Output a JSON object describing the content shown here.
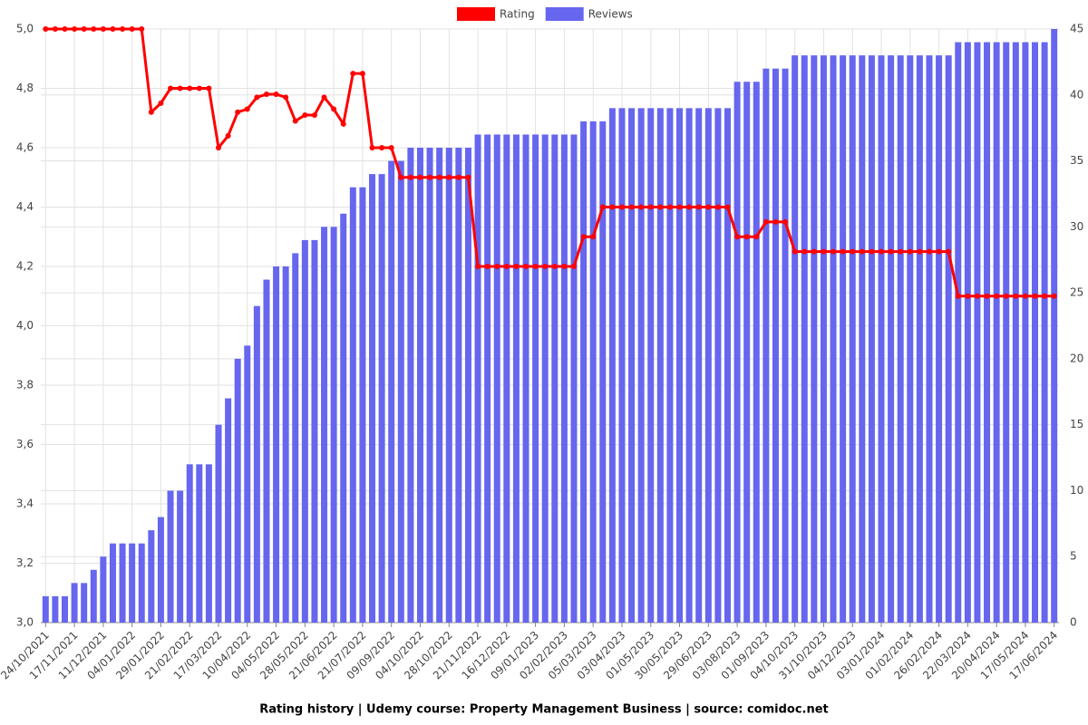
{
  "chart_data": {
    "type": "combo",
    "title": "Rating history | Udemy course: Property Management Business | source: comidoc.net",
    "categories": [
      "24/10/2021",
      null,
      null,
      "17/11/2021",
      null,
      null,
      "11/12/2021",
      null,
      null,
      "04/01/2022",
      null,
      null,
      "29/01/2022",
      null,
      null,
      "21/02/2022",
      null,
      null,
      "17/03/2022",
      null,
      null,
      "10/04/2022",
      null,
      null,
      "04/05/2022",
      null,
      null,
      "28/05/2022",
      null,
      null,
      "21/06/2022",
      null,
      null,
      "21/07/2022",
      null,
      null,
      "09/09/2022",
      null,
      null,
      "04/10/2022",
      null,
      null,
      "28/10/2022",
      null,
      null,
      "21/11/2022",
      null,
      null,
      "16/12/2022",
      null,
      null,
      "09/01/2023",
      null,
      null,
      "02/02/2023",
      null,
      null,
      "05/03/2023",
      null,
      null,
      "03/04/2023",
      null,
      null,
      "01/05/2023",
      null,
      null,
      "30/05/2023",
      null,
      null,
      "29/06/2023",
      null,
      null,
      "03/08/2023",
      null,
      null,
      "01/09/2023",
      null,
      null,
      "04/10/2023",
      null,
      null,
      "31/10/2023",
      null,
      null,
      "04/12/2023",
      null,
      null,
      "03/01/2024",
      null,
      null,
      "01/02/2024",
      null,
      null,
      "26/02/2024",
      null,
      null,
      "22/03/2024",
      null,
      null,
      "20/04/2024",
      null,
      null,
      "17/05/2024",
      null,
      null,
      "17/06/2024"
    ],
    "series": [
      {
        "name": "Rating",
        "type": "line",
        "axis": "y",
        "color": "#ff0000",
        "values": [
          5,
          5,
          5,
          5,
          5,
          5,
          5,
          5,
          5,
          5,
          5,
          4.72,
          4.75,
          4.8,
          4.8,
          4.8,
          4.8,
          4.8,
          4.6,
          4.64,
          4.72,
          4.73,
          4.77,
          4.78,
          4.78,
          4.77,
          4.69,
          4.71,
          4.71,
          4.77,
          4.73,
          4.68,
          4.85,
          4.85,
          4.6,
          4.6,
          4.6,
          4.5,
          4.5,
          4.5,
          4.5,
          4.5,
          4.5,
          4.5,
          4.5,
          4.2,
          4.2,
          4.2,
          4.2,
          4.2,
          4.2,
          4.2,
          4.2,
          4.2,
          4.2,
          4.2,
          4.3,
          4.3,
          4.4,
          4.4,
          4.4,
          4.4,
          4.4,
          4.4,
          4.4,
          4.4,
          4.4,
          4.4,
          4.4,
          4.4,
          4.4,
          4.4,
          4.3,
          4.3,
          4.3,
          4.35,
          4.35,
          4.35,
          4.25,
          4.25,
          4.25,
          4.25,
          4.25,
          4.25,
          4.25,
          4.25,
          4.25,
          4.25,
          4.25,
          4.25,
          4.25,
          4.25,
          4.25,
          4.25,
          4.25,
          4.1,
          4.1,
          4.1,
          4.1,
          4.1,
          4.1,
          4.1,
          4.1,
          4.1,
          4.1,
          4.1
        ]
      },
      {
        "name": "Reviews",
        "type": "bar",
        "axis": "y2",
        "color": "#6666ee",
        "values": [
          2,
          2,
          2,
          3,
          3,
          4,
          5,
          6,
          6,
          6,
          6,
          7,
          8,
          10,
          10,
          12,
          12,
          12,
          15,
          17,
          20,
          21,
          24,
          26,
          27,
          27,
          28,
          29,
          29,
          30,
          30,
          31,
          33,
          33,
          34,
          34,
          35,
          35,
          36,
          36,
          36,
          36,
          36,
          36,
          36,
          37,
          37,
          37,
          37,
          37,
          37,
          37,
          37,
          37,
          37,
          37,
          38,
          38,
          38,
          39,
          39,
          39,
          39,
          39,
          39,
          39,
          39,
          39,
          39,
          39,
          39,
          39,
          41,
          41,
          41,
          42,
          42,
          42,
          43,
          43,
          43,
          43,
          43,
          43,
          43,
          43,
          43,
          43,
          43,
          43,
          43,
          43,
          43,
          43,
          43,
          44,
          44,
          44,
          44,
          44,
          44,
          44,
          44,
          44,
          44,
          45
        ]
      }
    ],
    "ylim": [
      3,
      5
    ],
    "yticks": [
      {
        "value": 3,
        "label": "3,0"
      },
      {
        "value": 3.2,
        "label": "3,2"
      },
      {
        "value": 3.4,
        "label": "3,4"
      },
      {
        "value": 3.6,
        "label": "3,6"
      },
      {
        "value": 3.8,
        "label": "3,8"
      },
      {
        "value": 4,
        "label": "4,0"
      },
      {
        "value": 4.2,
        "label": "4,2"
      },
      {
        "value": 4.4,
        "label": "4,4"
      },
      {
        "value": 4.6,
        "label": "4,6"
      },
      {
        "value": 4.8,
        "label": "4,8"
      },
      {
        "value": 5,
        "label": "5,0"
      }
    ],
    "y2lim": [
      0,
      45
    ],
    "y2ticks": [
      0,
      5,
      10,
      15,
      20,
      25,
      30,
      35,
      40,
      45
    ],
    "grid": true
  }
}
